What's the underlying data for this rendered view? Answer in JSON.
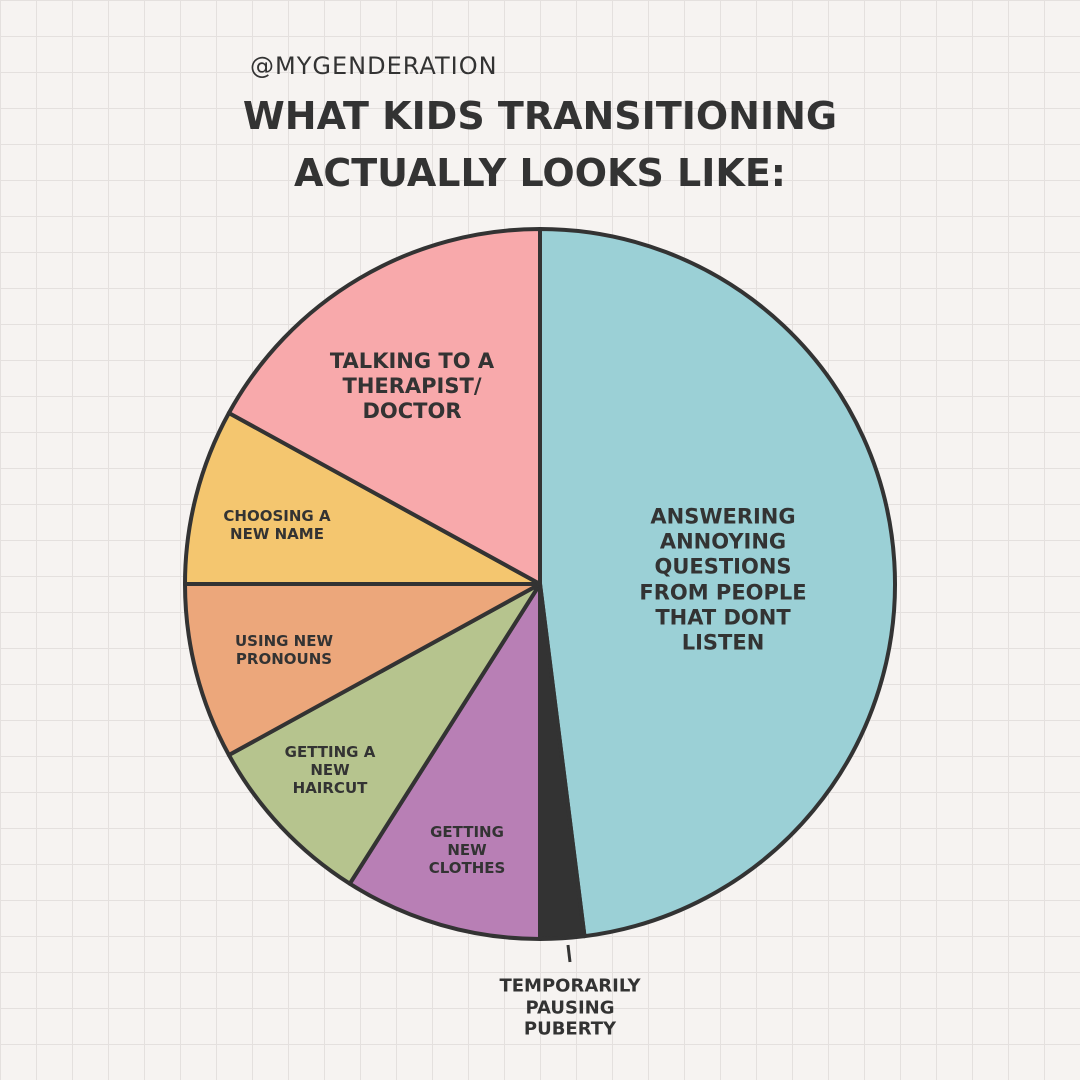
{
  "chart_data": {
    "type": "pie",
    "subtitle": "@MYGENDERATION",
    "title": "WHAT KIDS TRANSITIONING\nACTUALLY LOOKS LIKE:",
    "categories": [
      "ANSWERING\nANNOYING\nQUESTIONS\nFROM PEOPLE\nTHAT DONT\nLISTEN",
      "TEMPORARILY\nPAUSING\nPUBERTY",
      "GETTING\nNEW\nCLOTHES",
      "GETTING A\nNEW\nHAIRCUT",
      "USING NEW\nPRONOUNS",
      "CHOOSING A\nNEW NAME",
      "TALKING TO A\nTHERAPIST/\nDOCTOR"
    ],
    "values": [
      48,
      2,
      9,
      8,
      8,
      8,
      17
    ],
    "colors": [
      "#9bd0d6",
      "#333333",
      "#b87fb5",
      "#b6c48e",
      "#eca77b",
      "#f4c66f",
      "#f8a9ab"
    ]
  }
}
